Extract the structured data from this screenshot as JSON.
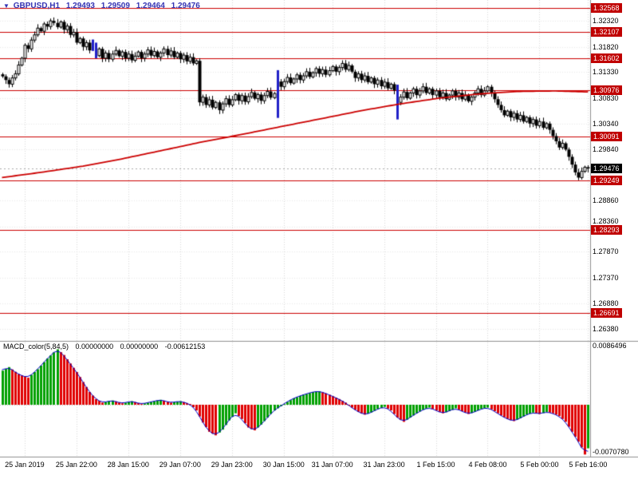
{
  "header": {
    "marker": "▼",
    "symbol": "GBPUSD,H1",
    "open": "1.29493",
    "high": "1.29509",
    "low": "1.29464",
    "close": "1.29476"
  },
  "macd_label": {
    "name": "MACD_color(5,84,5)",
    "value1": "0.00000000",
    "value2": "0.00000000",
    "value3": "-0.00612153"
  },
  "palette": {
    "header_text": "#3434b4",
    "grid": "#d8d8d8",
    "hgrid": "#e8e8e8",
    "level_line": "#cc0000",
    "badge_bg": "#c00000",
    "current_badge_bg": "#000000",
    "bull_body": "#ffffff",
    "bear_body": "#000000",
    "candle_outline": "#000000",
    "blue_candle": "#2020c8",
    "ma_line": "#cc0000",
    "macd_up": "#00a000",
    "macd_down": "#e00000",
    "macd_line": "#0000c8",
    "separator": "#909090",
    "current_line": "#aaaaaa"
  },
  "chart_data": {
    "type": "candlestick",
    "title": "GBPUSD H1 with MACD_color indicator",
    "symbol": "GBPUSD",
    "timeframe": "H1",
    "price_axis": {
      "labels": [
        {
          "text": "1.32320",
          "price": 1.3232
        },
        {
          "text": "1.31820",
          "price": 1.3182
        },
        {
          "text": "1.31330",
          "price": 1.3133
        },
        {
          "text": "1.30830",
          "price": 1.3083
        },
        {
          "text": "1.30340",
          "price": 1.3034
        },
        {
          "text": "1.29840",
          "price": 1.2984
        },
        {
          "text": "1.28860",
          "price": 1.2886
        },
        {
          "text": "1.28360",
          "price": 1.2836
        },
        {
          "text": "1.27870",
          "price": 1.2787
        },
        {
          "text": "1.27370",
          "price": 1.2737
        },
        {
          "text": "1.26880",
          "price": 1.2688
        },
        {
          "text": "1.26380",
          "price": 1.2638
        }
      ],
      "levels": [
        {
          "text": "1.32568",
          "price": 1.32568
        },
        {
          "text": "1.32107",
          "price": 1.32107
        },
        {
          "text": "1.31602",
          "price": 1.31602
        },
        {
          "text": "1.30976",
          "price": 1.30976
        },
        {
          "text": "1.30091",
          "price": 1.30091
        },
        {
          "text": "1.29249",
          "price": 1.29249
        },
        {
          "text": "1.28293",
          "price": 1.28293
        },
        {
          "text": "1.26691",
          "price": 1.26691
        }
      ],
      "current": {
        "text": "1.29476",
        "price": 1.29476
      }
    },
    "time_axis": {
      "ticks": [
        {
          "label": "25 Jan 2019",
          "index": 7
        },
        {
          "label": "25 Jan 22:00",
          "index": 23
        },
        {
          "label": "28 Jan 15:00",
          "index": 39
        },
        {
          "label": "29 Jan 07:00",
          "index": 55
        },
        {
          "label": "29 Jan 23:00",
          "index": 71
        },
        {
          "label": "30 Jan 15:00",
          "index": 87
        },
        {
          "label": "31 Jan 07:00",
          "index": 102
        },
        {
          "label": "31 Jan 23:00",
          "index": 118
        },
        {
          "label": "1 Feb 15:00",
          "index": 134
        },
        {
          "label": "4 Feb 08:00",
          "index": 150
        },
        {
          "label": "5 Feb 00:00",
          "index": 166
        },
        {
          "label": "5 Feb 16:00",
          "index": 181
        }
      ]
    },
    "candles": {
      "first_open": 1.3129,
      "closes": [
        1.3125,
        1.3118,
        1.311,
        1.3122,
        1.313,
        1.3147,
        1.316,
        1.3185,
        1.3178,
        1.3195,
        1.3205,
        1.3218,
        1.3212,
        1.3226,
        1.3221,
        1.3232,
        1.3228,
        1.322,
        1.323,
        1.3215,
        1.3222,
        1.3205,
        1.321,
        1.319,
        1.3198,
        1.3182,
        1.319,
        1.3175,
        1.3185,
        1.3165,
        1.3178,
        1.316,
        1.317,
        1.3158,
        1.3168,
        1.3175,
        1.3164,
        1.3172,
        1.316,
        1.3168,
        1.3156,
        1.3164,
        1.3172,
        1.316,
        1.3168,
        1.3176,
        1.3165,
        1.3173,
        1.3162,
        1.317,
        1.3178,
        1.3166,
        1.3174,
        1.3162,
        1.317,
        1.3158,
        1.3166,
        1.3154,
        1.3162,
        1.315,
        1.3155,
        1.3075,
        1.3085,
        1.307,
        1.308,
        1.3065,
        1.3075,
        1.306,
        1.3072,
        1.3082,
        1.307,
        1.308,
        1.309,
        1.3078,
        1.3088,
        1.3076,
        1.3086,
        1.3094,
        1.3082,
        1.309,
        1.3078,
        1.3088,
        1.3096,
        1.3084,
        1.3092,
        1.3115,
        1.3105,
        1.3115,
        1.3123,
        1.3112,
        1.312,
        1.3128,
        1.3118,
        1.3126,
        1.3134,
        1.3124,
        1.3132,
        1.314,
        1.313,
        1.3138,
        1.3128,
        1.3136,
        1.3144,
        1.3134,
        1.3142,
        1.315,
        1.3138,
        1.3146,
        1.3134,
        1.3122,
        1.313,
        1.3118,
        1.3126,
        1.3114,
        1.3122,
        1.311,
        1.3118,
        1.3106,
        1.3114,
        1.3102,
        1.311,
        1.3098,
        1.3075,
        1.3085,
        1.3095,
        1.3083,
        1.3093,
        1.3101,
        1.3089,
        1.3097,
        1.3105,
        1.3093,
        1.3101,
        1.3089,
        1.3097,
        1.3085,
        1.3093,
        1.3081,
        1.3089,
        1.3097,
        1.3085,
        1.3093,
        1.3081,
        1.3089,
        1.3077,
        1.3085,
        1.3093,
        1.3101,
        1.3089,
        1.3097,
        1.3105,
        1.3093,
        1.3081,
        1.307,
        1.306,
        1.305,
        1.3058,
        1.3046,
        1.3054,
        1.3042,
        1.305,
        1.3038,
        1.3046,
        1.3034,
        1.3042,
        1.303,
        1.3038,
        1.3026,
        1.3034,
        1.3022,
        1.301,
        1.3,
        1.2988,
        1.2996,
        1.2984,
        1.297,
        1.2955,
        1.294,
        1.293,
        1.2942,
        1.295,
        1.29476
      ],
      "blue_indices": [
        28,
        29,
        85,
        122
      ],
      "overrides": {
        "15": {
          "high": 1.32365
        },
        "28": {
          "high": 1.3196,
          "low": 1.3174
        },
        "29": {
          "high": 1.319,
          "low": 1.316
        },
        "61": {
          "high": 1.316,
          "low": 1.3068
        },
        "85": {
          "high": 1.3137,
          "low": 1.3045
        },
        "105": {
          "high": 1.3156
        },
        "122": {
          "high": 1.3109,
          "low": 1.3042
        },
        "178": {
          "low": 1.29249
        }
      }
    },
    "ma": {
      "anchors": [
        [
          0,
          1.293
        ],
        [
          12,
          1.294
        ],
        [
          25,
          1.2952
        ],
        [
          37,
          1.2966
        ],
        [
          50,
          1.2983
        ],
        [
          62,
          1.2999
        ],
        [
          74,
          1.3013
        ],
        [
          86,
          1.3028
        ],
        [
          99,
          1.3044
        ],
        [
          111,
          1.3059
        ],
        [
          123,
          1.3072
        ],
        [
          135,
          1.3083
        ],
        [
          147,
          1.3091
        ],
        [
          159,
          1.3096
        ],
        [
          171,
          1.3097
        ],
        [
          181,
          1.3095
        ]
      ]
    },
    "macd": {
      "axis_max_label": "0.0086496",
      "axis_min_label": "-0.0070780",
      "axis_max": 0.0086496,
      "axis_min": -0.007078,
      "current": -0.00612153,
      "anchors": [
        [
          0,
          0.0048
        ],
        [
          2,
          0.0053
        ],
        [
          5,
          0.0043
        ],
        [
          8,
          0.0038
        ],
        [
          11,
          0.005
        ],
        [
          14,
          0.0065
        ],
        [
          17,
          0.0078
        ],
        [
          19,
          0.007
        ],
        [
          21,
          0.0058
        ],
        [
          23,
          0.0046
        ],
        [
          25,
          0.0032
        ],
        [
          27,
          0.0018
        ],
        [
          29,
          0.0008
        ],
        [
          31,
          0.0003
        ],
        [
          34,
          0.0006
        ],
        [
          37,
          0.0002
        ],
        [
          40,
          0.0005
        ],
        [
          43,
          0.0001
        ],
        [
          46,
          0.0004
        ],
        [
          49,
          0.0007
        ],
        [
          52,
          0.0003
        ],
        [
          55,
          0.0005
        ],
        [
          58,
          0.0001
        ],
        [
          60,
          -0.0008
        ],
        [
          62,
          -0.0025
        ],
        [
          64,
          -0.0038
        ],
        [
          66,
          -0.0043
        ],
        [
          68,
          -0.0035
        ],
        [
          70,
          -0.0022
        ],
        [
          72,
          -0.0012
        ],
        [
          74,
          -0.002
        ],
        [
          76,
          -0.0032
        ],
        [
          78,
          -0.0036
        ],
        [
          80,
          -0.0028
        ],
        [
          82,
          -0.0018
        ],
        [
          84,
          -0.0008
        ],
        [
          86,
          -0.0002
        ],
        [
          88,
          0.0004
        ],
        [
          90,
          0.0009
        ],
        [
          93,
          0.0014
        ],
        [
          96,
          0.0018
        ],
        [
          98,
          0.0019
        ],
        [
          100,
          0.0016
        ],
        [
          102,
          0.0012
        ],
        [
          104,
          0.0008
        ],
        [
          106,
          0.0003
        ],
        [
          108,
          -0.0004
        ],
        [
          110,
          -0.001
        ],
        [
          112,
          -0.0014
        ],
        [
          114,
          -0.0011
        ],
        [
          116,
          -0.0006
        ],
        [
          118,
          -0.0003
        ],
        [
          120,
          -0.0008
        ],
        [
          122,
          -0.0018
        ],
        [
          124,
          -0.0024
        ],
        [
          126,
          -0.0018
        ],
        [
          128,
          -0.0012
        ],
        [
          130,
          -0.0007
        ],
        [
          132,
          -0.0004
        ],
        [
          134,
          -0.0008
        ],
        [
          136,
          -0.0012
        ],
        [
          138,
          -0.0009
        ],
        [
          140,
          -0.0005
        ],
        [
          142,
          -0.0009
        ],
        [
          144,
          -0.0013
        ],
        [
          146,
          -0.001
        ],
        [
          148,
          -0.0006
        ],
        [
          150,
          -0.0004
        ],
        [
          152,
          -0.0009
        ],
        [
          154,
          -0.0015
        ],
        [
          156,
          -0.002
        ],
        [
          158,
          -0.0023
        ],
        [
          160,
          -0.0019
        ],
        [
          162,
          -0.0014
        ],
        [
          164,
          -0.0011
        ],
        [
          166,
          -0.0013
        ],
        [
          168,
          -0.001
        ],
        [
          170,
          -0.0012
        ],
        [
          172,
          -0.0016
        ],
        [
          174,
          -0.0024
        ],
        [
          176,
          -0.0038
        ],
        [
          178,
          -0.0052
        ],
        [
          179,
          -0.006
        ],
        [
          180,
          -0.007
        ],
        [
          181,
          -0.00612153
        ]
      ]
    }
  }
}
